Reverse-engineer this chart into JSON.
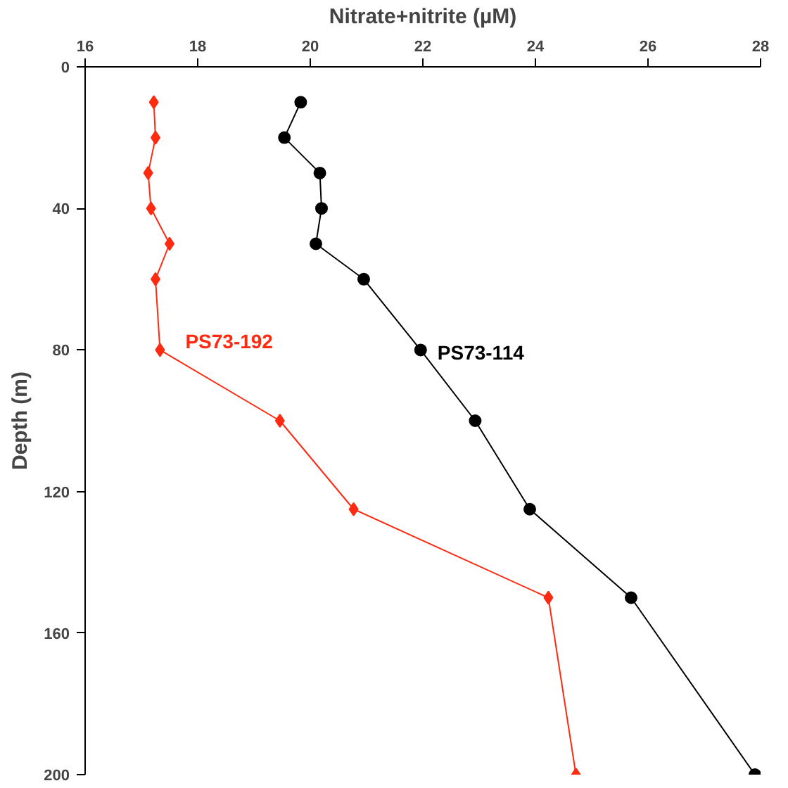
{
  "chart_data": {
    "type": "line",
    "xlabel": "Nitrate+nitrite (µM)",
    "ylabel": "Depth (m)",
    "xlim": [
      16,
      28
    ],
    "xticks": [
      16,
      18,
      20,
      22,
      24,
      26,
      28
    ],
    "ylim": [
      200,
      0
    ],
    "yticks": [
      0,
      40,
      80,
      120,
      160,
      200
    ],
    "grid": false,
    "legend": false,
    "line_style": "solid",
    "series": [
      {
        "name": "PS73-114",
        "color": "#000000",
        "marker": "circle",
        "x": [
          19.83,
          19.54,
          20.17,
          20.2,
          20.1,
          20.95,
          21.96,
          22.93,
          23.9,
          25.7,
          27.9
        ],
        "values": [
          10,
          20,
          30,
          40,
          50,
          60,
          80,
          100,
          125,
          150,
          200
        ]
      },
      {
        "name": "PS73-192",
        "color": "#ff2a10",
        "marker": "diamond",
        "x": [
          17.22,
          17.25,
          17.12,
          17.17,
          17.5,
          17.25,
          17.33,
          19.46,
          20.77,
          24.23,
          24.72
        ],
        "values": [
          10,
          20,
          30,
          40,
          50,
          60,
          80,
          100,
          125,
          150,
          200
        ]
      }
    ]
  }
}
